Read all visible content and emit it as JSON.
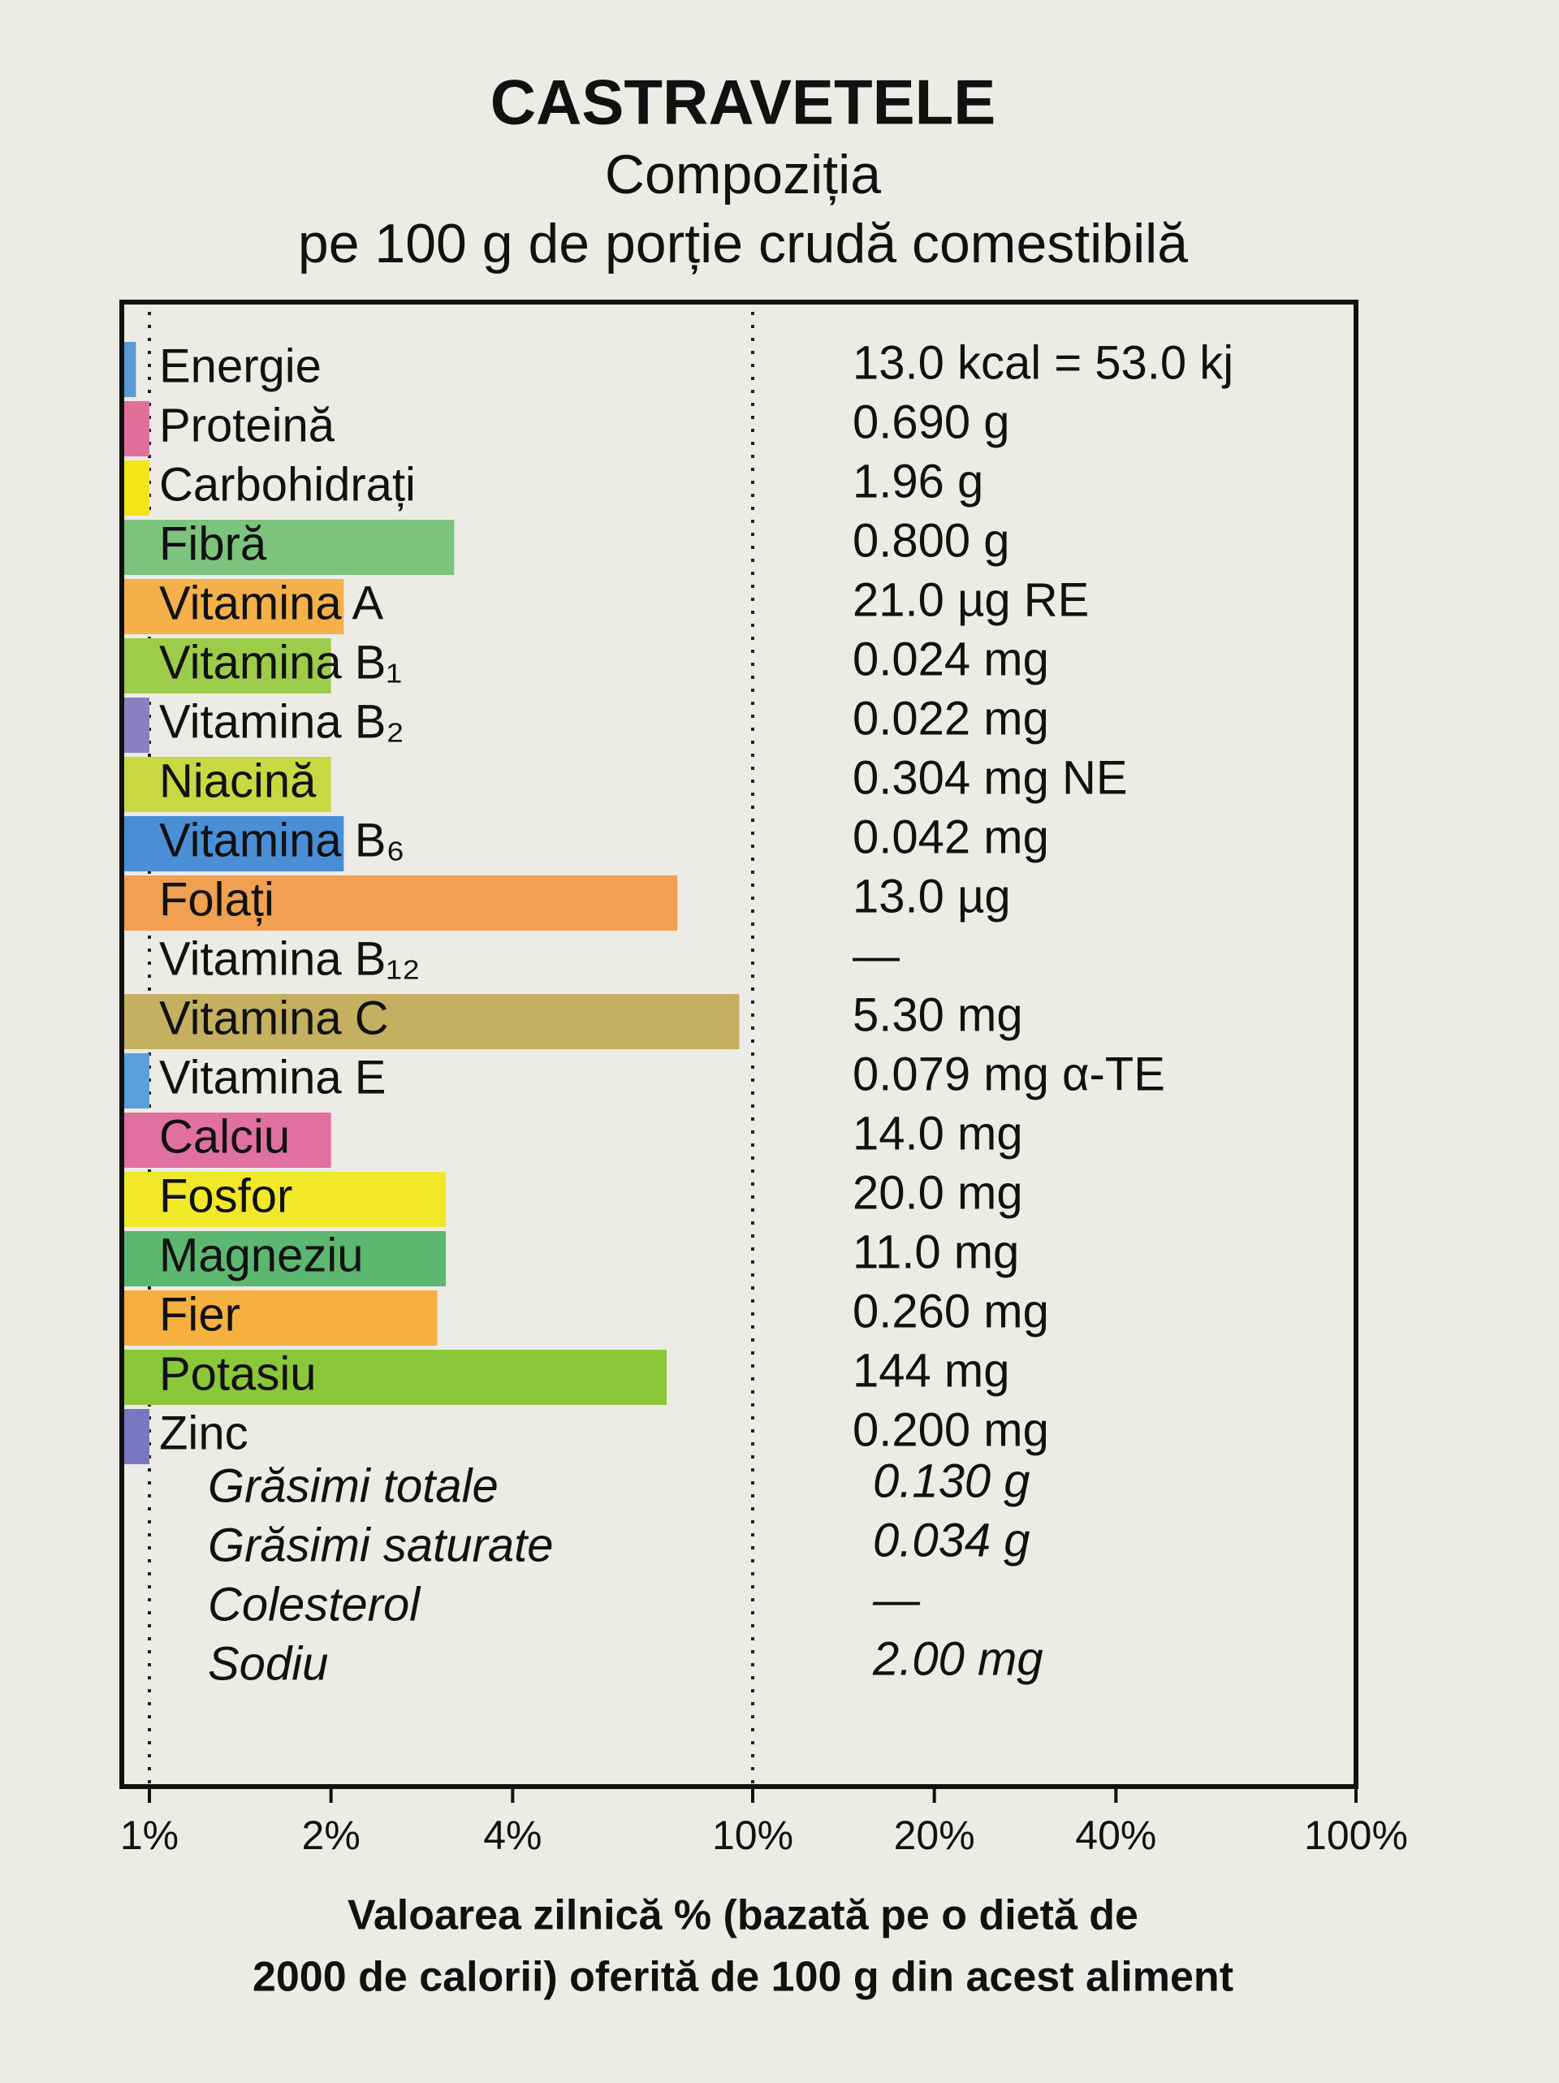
{
  "chart_data": {
    "type": "bar",
    "orientation": "horizontal",
    "title": "CASTRAVETELE",
    "subtitle": [
      "Compoziția",
      "pe 100 g de porție crudă comestibilă"
    ],
    "categories": [
      "Energie",
      "Proteină",
      "Carbohidrați",
      "Fibră",
      "Vitamina A",
      "Vitamina B₁",
      "Vitamina B₂",
      "Niacină",
      "Vitamina B₆",
      "Folați",
      "Vitamina B₁₂",
      "Vitamina C",
      "Vitamina E",
      "Calciu",
      "Fosfor",
      "Magneziu",
      "Fier",
      "Potasiu",
      "Zinc"
    ],
    "amounts": [
      "13.0 kcal = 53.0 kj",
      "0.690 g",
      "1.96 g",
      "0.800 g",
      "21.0 µg RE",
      "0.024 mg",
      "0.022 mg",
      "0.304 mg NE",
      "0.042 mg",
      "13.0 µg",
      "—",
      "5.30 mg",
      "0.079 mg α-TE",
      "14.0 mg",
      "20.0 mg",
      "11.0 mg",
      "0.260 mg",
      "144 mg",
      "0.200 mg"
    ],
    "values": [
      0.95,
      1.0,
      1.0,
      3.2,
      2.1,
      2.0,
      1.0,
      2.0,
      2.1,
      7.5,
      null,
      9.5,
      1.0,
      2.0,
      3.1,
      3.1,
      3.0,
      7.2,
      1.0
    ],
    "colors": [
      "#5a9bd4",
      "#e0709a",
      "#f2e51a",
      "#7cc47e",
      "#f5b04a",
      "#9ccc4a",
      "#8a7fc0",
      "#c8d840",
      "#4a8fd6",
      "#f0a050",
      null,
      "#c4b060",
      "#5aa0dc",
      "#e070a0",
      "#f2e82a",
      "#5cb870",
      "#f5b040",
      "#8ac83a",
      "#7878c0"
    ],
    "other_rows": [
      {
        "name": "Grăsimi totale",
        "amount": "0.130 g"
      },
      {
        "name": "Grăsimi saturate",
        "amount": "0.034 g"
      },
      {
        "name": "Colesterol",
        "amount": "—"
      },
      {
        "name": "Sodiu",
        "amount": "2.00 mg"
      }
    ],
    "xscale": "log",
    "xlim": [
      0.9,
      100
    ],
    "xticks": [
      {
        "value": 1,
        "label": "1%"
      },
      {
        "value": 2,
        "label": "2%"
      },
      {
        "value": 4,
        "label": "4%"
      },
      {
        "value": 10,
        "label": "10%"
      },
      {
        "value": 20,
        "label": "20%"
      },
      {
        "value": 40,
        "label": "40%"
      },
      {
        "value": 100,
        "label": "100%"
      }
    ],
    "grid_lines": [
      1,
      10
    ],
    "xlabel": [
      "Valoarea zilnică % (bazată pe o dietă de",
      "2000 de calorii) oferită de 100 g din acest aliment"
    ]
  }
}
